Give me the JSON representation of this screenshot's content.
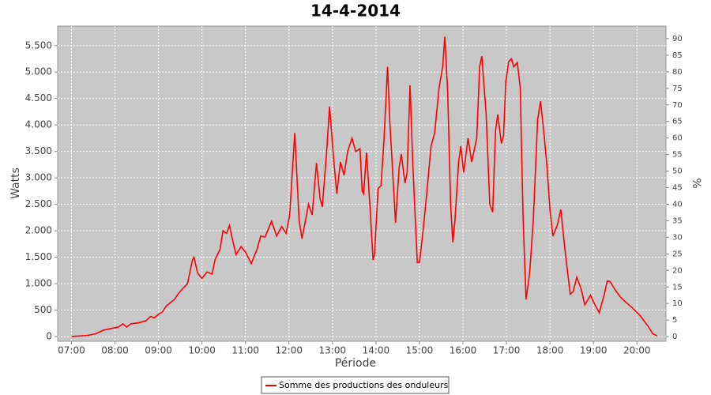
{
  "chart_data": {
    "type": "line",
    "title": "14-4-2014",
    "x_label": "Période",
    "y_label": "Watts",
    "y2_label": "%",
    "x": [
      "07:00",
      "07:22",
      "07:33",
      "07:44",
      "07:54",
      "08:05",
      "08:11",
      "08:16",
      "08:22",
      "08:33",
      "08:43",
      "08:49",
      "08:54",
      "09:00",
      "09:05",
      "09:11",
      "09:22",
      "09:27",
      "09:33",
      "09:40",
      "09:47",
      "09:49",
      "09:54",
      "10:00",
      "10:07",
      "10:14",
      "10:18",
      "10:25",
      "10:29",
      "10:34",
      "10:38",
      "10:41",
      "10:47",
      "10:54",
      "11:00",
      "11:08",
      "11:16",
      "11:21",
      "11:27",
      "11:36",
      "11:43",
      "11:50",
      "11:56",
      "12:01",
      "12:08",
      "12:14",
      "12:18",
      "12:27",
      "12:32",
      "12:38",
      "12:43",
      "12:46",
      "12:52",
      "12:56",
      "13:02",
      "13:06",
      "13:11",
      "13:16",
      "13:21",
      "13:27",
      "13:32",
      "13:38",
      "13:41",
      "13:43",
      "13:47",
      "13:52",
      "13:56",
      "13:58",
      "14:03",
      "14:07",
      "14:11",
      "14:16",
      "14:19",
      "14:27",
      "14:32",
      "14:35",
      "14:40",
      "14:43",
      "14:47",
      "14:51",
      "14:57",
      "15:00",
      "15:05",
      "15:10",
      "15:16",
      "15:21",
      "15:27",
      "15:32",
      "15:35",
      "15:39",
      "15:43",
      "15:46",
      "15:49",
      "15:54",
      "15:57",
      "16:01",
      "16:07",
      "16:12",
      "16:19",
      "16:23",
      "16:26",
      "16:32",
      "16:37",
      "16:41",
      "16:45",
      "16:48",
      "16:53",
      "16:56",
      "16:59",
      "17:03",
      "17:07",
      "17:10",
      "17:15",
      "17:19",
      "17:23",
      "17:27",
      "17:32",
      "17:37",
      "17:43",
      "17:47",
      "17:52",
      "17:56",
      "18:00",
      "18:04",
      "18:10",
      "18:15",
      "18:21",
      "18:28",
      "18:32",
      "18:37",
      "18:43",
      "18:48",
      "18:56",
      "19:02",
      "19:08",
      "19:15",
      "19:19",
      "19:23",
      "19:29",
      "19:37",
      "19:42",
      "19:53",
      "20:04",
      "20:15",
      "20:22",
      "20:28"
    ],
    "series": [
      {
        "name": "Somme des productions des onduleurs",
        "color": "#ff0000",
        "values": [
          0,
          20,
          50,
          120,
          150,
          180,
          240,
          180,
          240,
          260,
          300,
          380,
          350,
          420,
          460,
          580,
          700,
          800,
          900,
          1000,
          1450,
          1500,
          1200,
          1100,
          1220,
          1180,
          1450,
          1650,
          2000,
          1950,
          2100,
          1900,
          1550,
          1700,
          1600,
          1380,
          1650,
          1900,
          1880,
          2180,
          1900,
          2080,
          1950,
          2300,
          3850,
          2200,
          1850,
          2500,
          2300,
          3280,
          2600,
          2450,
          3500,
          4350,
          3300,
          2700,
          3300,
          3050,
          3500,
          3750,
          3500,
          3550,
          2750,
          2700,
          3480,
          2400,
          1450,
          1550,
          2800,
          2850,
          3700,
          5100,
          4100,
          2150,
          3200,
          3450,
          2900,
          3100,
          4750,
          3200,
          1400,
          1400,
          2000,
          2700,
          3600,
          3850,
          4700,
          5100,
          5670,
          4600,
          2500,
          1780,
          2200,
          3300,
          3600,
          3100,
          3750,
          3300,
          3750,
          5100,
          5300,
          4200,
          2500,
          2350,
          3900,
          4200,
          3650,
          3800,
          4800,
          5200,
          5250,
          5100,
          5180,
          4700,
          2200,
          700,
          1200,
          2200,
          4100,
          4450,
          3800,
          3200,
          2400,
          1900,
          2100,
          2400,
          1600,
          800,
          850,
          1120,
          900,
          600,
          780,
          600,
          450,
          800,
          1050,
          1040,
          900,
          750,
          680,
          550,
          400,
          200,
          50,
          10
        ]
      }
    ],
    "xlim": [
      "06:41",
      "20:40"
    ],
    "xticks": [
      "07:00",
      "08:00",
      "09:00",
      "10:00",
      "11:00",
      "12:00",
      "13:00",
      "14:00",
      "15:00",
      "16:00",
      "17:00",
      "18:00",
      "19:00",
      "20:00"
    ],
    "ylim": [
      -90,
      5870
    ],
    "yticks": [
      0,
      500,
      {
        "value": 1000,
        "label": "1.000"
      },
      {
        "value": 1500,
        "label": "1.500"
      },
      {
        "value": 2000,
        "label": "2.000"
      },
      {
        "value": 2500,
        "label": "2.500"
      },
      {
        "value": 3000,
        "label": "3.000"
      },
      {
        "value": 3500,
        "label": "3.500"
      },
      {
        "value": 4000,
        "label": "4.000"
      },
      {
        "value": 4500,
        "label": "4.500"
      },
      {
        "value": 5000,
        "label": "5.000"
      },
      {
        "value": 5500,
        "label": "5.500"
      }
    ],
    "y2lim": [
      -1.4,
      93.8
    ],
    "y2ticks": [
      0,
      5,
      10,
      15,
      20,
      25,
      30,
      35,
      40,
      45,
      50,
      55,
      60,
      65,
      70,
      75,
      80,
      85,
      90
    ],
    "grid": true,
    "legend": "bottom"
  }
}
